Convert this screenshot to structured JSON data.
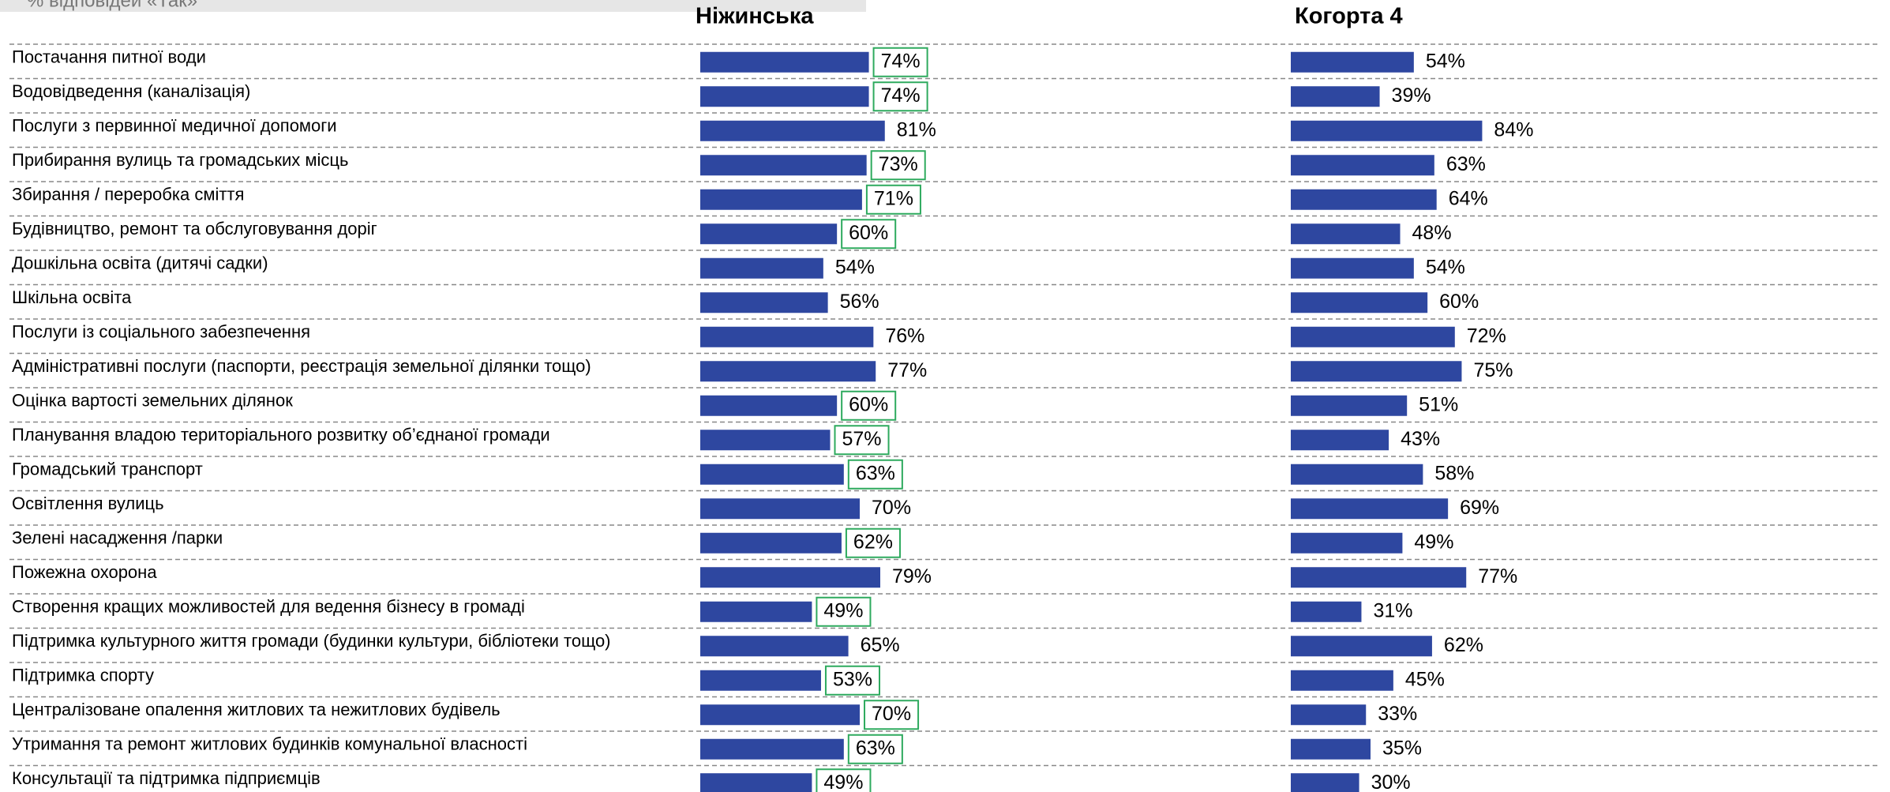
{
  "chart_data": {
    "type": "bar",
    "orientation": "horizontal",
    "subtitle": "% відповідей «Так»",
    "categories": [
      "Постачання питної води",
      "Водовідведення (каналізація)",
      "Послуги з первинної медичної допомоги",
      "Прибирання вулиць та громадських місць",
      "Збирання / переробка сміття",
      "Будівництво, ремонт та обслуговування доріг",
      "Дошкільна освіта (дитячі садки)",
      "Шкільна освіта",
      "Послуги із соціального забезпечення",
      "Адміністративні послуги (паспорти, реєстрація земельної ділянки тощо)",
      "Оцінка вартості земельних ділянок",
      "Планування владою територіального розвитку об’єднаної громади",
      "Громадський транспорт",
      "Освітлення вулиць",
      "Зелені насадження /парки",
      "Пожежна охорона",
      "Створення кращих можливостей для ведення бізнесу в громаді",
      "Підтримка культурного життя громади (будинки культури, бібліотеки тощо)",
      "Підтримка спорту",
      "Централізоване опалення житлових та нежитлових будівель",
      "Утримання та ремонт житлових будинків комунальної власності",
      "Консультації та підтримка підприємців"
    ],
    "series": [
      {
        "name": "Ніжинська",
        "color": "#2e47a0",
        "values": [
          74,
          74,
          81,
          73,
          71,
          60,
          54,
          56,
          76,
          77,
          60,
          57,
          63,
          70,
          62,
          79,
          49,
          65,
          53,
          70,
          63,
          49
        ],
        "value_labels": [
          "74%",
          "74%",
          "81%",
          "73%",
          "71%",
          "60%",
          "54%",
          "56%",
          "76%",
          "77%",
          "60%",
          "57%",
          "63%",
          "70%",
          "62%",
          "79%",
          "49%",
          "65%",
          "53%",
          "70%",
          "63%",
          "49%"
        ],
        "highlighted": [
          true,
          true,
          false,
          true,
          true,
          true,
          false,
          false,
          false,
          false,
          true,
          true,
          true,
          false,
          true,
          false,
          true,
          false,
          true,
          true,
          true,
          true
        ],
        "highlight_color": "#2eaa5e"
      },
      {
        "name": "Когорта 4",
        "color": "#2e47a0",
        "values": [
          54,
          39,
          84,
          63,
          64,
          48,
          54,
          60,
          72,
          75,
          51,
          43,
          58,
          69,
          49,
          77,
          31,
          62,
          45,
          33,
          35,
          30
        ],
        "value_labels": [
          "54%",
          "39%",
          "84%",
          "63%",
          "64%",
          "48%",
          "54%",
          "60%",
          "72%",
          "75%",
          "51%",
          "43%",
          "58%",
          "69%",
          "49%",
          "77%",
          "31%",
          "62%",
          "45%",
          "33%",
          "35%",
          "30%"
        ]
      }
    ],
    "xlim": [
      0,
      100
    ]
  }
}
